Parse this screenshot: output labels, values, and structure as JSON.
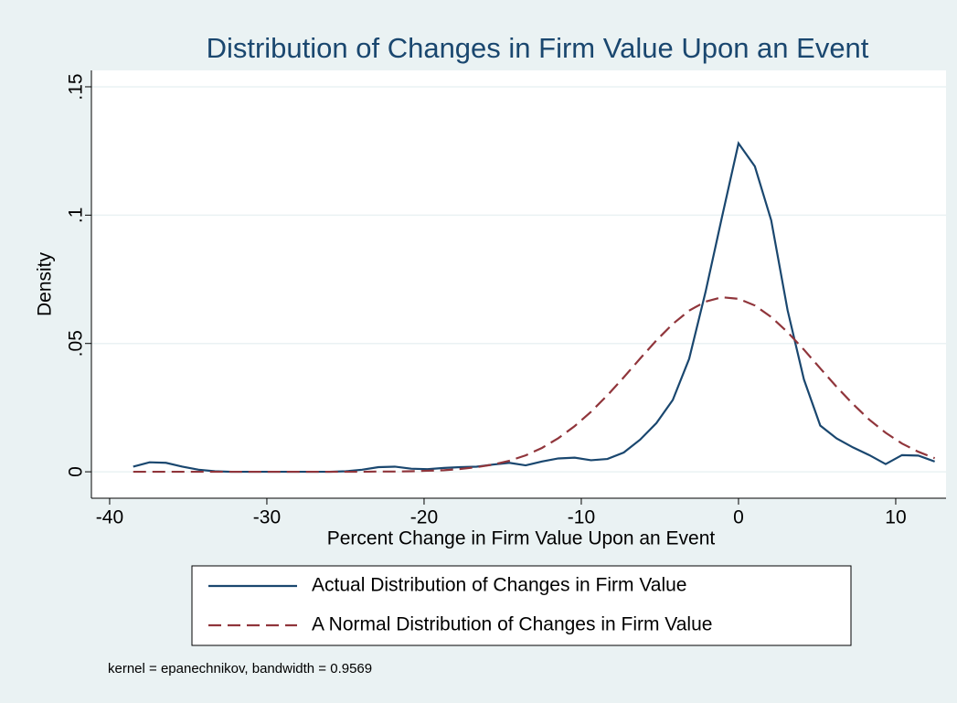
{
  "chart_data": {
    "type": "line",
    "title": "Distribution of Changes in Firm Value Upon an Event",
    "x_label": "Percent Change in Firm Value Upon an Event",
    "y_label": "Density",
    "note": "kernel = epanechnikov, bandwidth = 0.9569",
    "xlim": [
      -41.16,
      13.2
    ],
    "ylim": [
      -0.0103,
      0.1564
    ],
    "xticks": [
      -40,
      -30,
      -20,
      -10,
      0,
      10
    ],
    "yticks": [
      0,
      {
        "value": 0.05,
        "label": ".05"
      },
      {
        "value": 0.1,
        "label": ".1"
      },
      {
        "value": 0.15,
        "label": ".15"
      }
    ],
    "grid": true,
    "legend": "bottom",
    "x": [
      -38.5,
      -37.46,
      -36.42,
      -35.38,
      -34.34,
      -33.3,
      -32.26,
      -31.22,
      -30.18,
      -29.14,
      -28.1,
      -27.06,
      -26.02,
      -24.98,
      -23.94,
      -22.9,
      -21.86,
      -20.82,
      -19.78,
      -18.74,
      -17.7,
      -16.66,
      -15.62,
      -14.58,
      -13.54,
      -12.5,
      -11.46,
      -10.42,
      -9.38,
      -8.34,
      -7.3,
      -6.26,
      -5.22,
      -4.18,
      -3.14,
      -2.1,
      -1.06,
      0.0,
      1.04,
      2.08,
      3.12,
      4.16,
      5.2,
      6.24,
      7.28,
      8.32,
      9.36,
      10.4,
      11.44,
      12.48
    ],
    "series": [
      {
        "name": "Actual Distribution of Changes in Firm Value",
        "color": "#1a476f",
        "dash": false,
        "values": [
          0.002,
          0.0037,
          0.0035,
          0.002,
          0.0008,
          0.0002,
          0,
          0,
          0,
          0,
          0,
          0,
          0,
          0.0002,
          0.0008,
          0.0018,
          0.002,
          0.0012,
          0.001,
          0.0015,
          0.0018,
          0.002,
          0.0028,
          0.0035,
          0.0025,
          0.004,
          0.0052,
          0.0055,
          0.0045,
          0.005,
          0.0075,
          0.0125,
          0.019,
          0.028,
          0.044,
          0.07,
          0.099,
          0.128,
          0.119,
          0.098,
          0.063,
          0.036,
          0.018,
          0.013,
          0.0095,
          0.0065,
          0.003,
          0.0065,
          0.0063,
          0.004
        ]
      },
      {
        "name": "A Normal Distribution of Changes in Firm Value",
        "color": "#90353b",
        "dash": true,
        "values": [
          0,
          0,
          0,
          0,
          0,
          0,
          0,
          0,
          0,
          0,
          0,
          0,
          0,
          0,
          0,
          0.0001,
          0.0001,
          0.0002,
          0.0004,
          0.0006,
          0.0011,
          0.0018,
          0.0028,
          0.0043,
          0.0064,
          0.0093,
          0.0131,
          0.0178,
          0.0234,
          0.0298,
          0.0368,
          0.0441,
          0.0512,
          0.0576,
          0.0628,
          0.0663,
          0.068,
          0.0674,
          0.0648,
          0.0603,
          0.0544,
          0.0476,
          0.0403,
          0.0331,
          0.0264,
          0.0203,
          0.0152,
          0.011,
          0.0078,
          0.0053
        ]
      }
    ]
  }
}
